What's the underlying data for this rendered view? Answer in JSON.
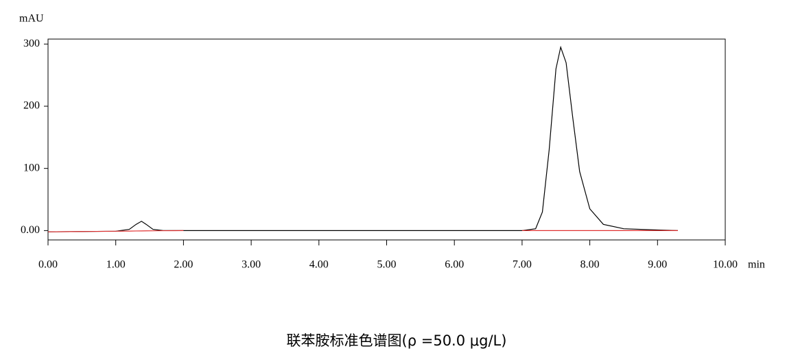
{
  "chart_data": {
    "type": "line",
    "y_label": "mAU",
    "x_label": "min",
    "caption": "联苯胺标准色谱图(ρ =50.0 μg/L)",
    "x": [
      0,
      0.5,
      1.0,
      1.2,
      1.3,
      1.38,
      1.45,
      1.55,
      1.7,
      2.0,
      3,
      4,
      5,
      6,
      7,
      7.2,
      7.3,
      7.4,
      7.5,
      7.57,
      7.65,
      7.75,
      7.85,
      8.0,
      8.2,
      8.5,
      9.0,
      9.3
    ],
    "series": [
      {
        "color": "#000000",
        "values": [
          -2,
          -1.5,
          -1,
          2,
          10,
          15,
          10,
          2,
          0,
          0,
          0,
          0,
          0,
          0,
          0,
          3,
          30,
          130,
          260,
          295,
          270,
          180,
          95,
          35,
          10,
          3,
          1,
          0
        ]
      },
      {
        "color": "#e03030",
        "values": [
          -2,
          -1.5,
          -1,
          -0.8,
          -0.6,
          -0.5,
          -0.4,
          -0.3,
          -0.2,
          0,
          null,
          null,
          null,
          null,
          0,
          0,
          0,
          0,
          0,
          0,
          0,
          0,
          0,
          0,
          0,
          0,
          0,
          0
        ]
      }
    ],
    "xlim": [
      0,
      10
    ],
    "ylim": [
      -15,
      308
    ],
    "xticks": [
      {
        "value": 0,
        "label": "0.00"
      },
      {
        "value": 1,
        "label": "1.00"
      },
      {
        "value": 2,
        "label": "2.00"
      },
      {
        "value": 3,
        "label": "3.00"
      },
      {
        "value": 4,
        "label": "4.00"
      },
      {
        "value": 5,
        "label": "5.00"
      },
      {
        "value": 6,
        "label": "6.00"
      },
      {
        "value": 7,
        "label": "7.00"
      },
      {
        "value": 8,
        "label": "8.00"
      },
      {
        "value": 9,
        "label": "9.00"
      },
      {
        "value": 10,
        "label": "10.00"
      }
    ],
    "yticks": [
      {
        "value": 0,
        "label": "0.00"
      },
      100,
      200,
      300
    ]
  }
}
